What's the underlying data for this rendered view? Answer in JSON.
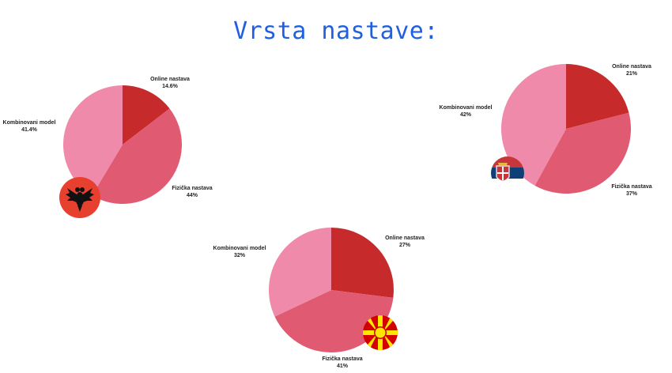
{
  "title": "Vrsta nastave:",
  "colors": {
    "title": "#1f5fe0",
    "online": "#c62a2a",
    "fizicka": "#e05a72",
    "kombinovani": "#f08aaa"
  },
  "chart_data": [
    {
      "type": "pie",
      "country_flag_icon": "albania-flag-icon",
      "slices": [
        {
          "label": "Online nastava",
          "value_text": "14.6%",
          "value": 14.6,
          "color": "#c62a2a"
        },
        {
          "label": "Fizička nastava",
          "value_text": "44%",
          "value": 44.0,
          "color": "#e05a72"
        },
        {
          "label": "Kombinovani model",
          "value_text": "41.4%",
          "value": 41.4,
          "color": "#f08aaa"
        }
      ]
    },
    {
      "type": "pie",
      "country_flag_icon": "serbia-flag-icon",
      "slices": [
        {
          "label": "Online nastava",
          "value_text": "21%",
          "value": 21,
          "color": "#c62a2a"
        },
        {
          "label": "Fizička nastava",
          "value_text": "37%",
          "value": 37,
          "color": "#e05a72"
        },
        {
          "label": "Kombinovani model",
          "value_text": "42%",
          "value": 42,
          "color": "#f08aaa"
        }
      ]
    },
    {
      "type": "pie",
      "country_flag_icon": "north-macedonia-flag-icon",
      "slices": [
        {
          "label": "Online nastava",
          "value_text": "27%",
          "value": 27,
          "color": "#c62a2a"
        },
        {
          "label": "Fizička nastava",
          "value_text": "41%",
          "value": 41,
          "color": "#e05a72"
        },
        {
          "label": "Kombinovani model",
          "value_text": "32%",
          "value": 32,
          "color": "#f08aaa"
        }
      ]
    }
  ]
}
